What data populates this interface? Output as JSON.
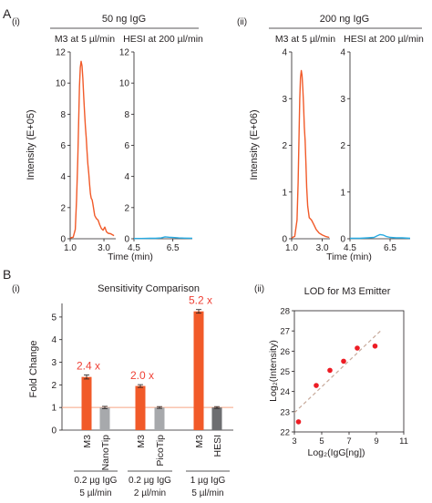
{
  "panel_labels": {
    "A": "A",
    "A_i": "(i)",
    "A_ii": "(ii)",
    "B": "B",
    "B_i": "(i)",
    "B_ii": "(ii)"
  },
  "colors": {
    "orange": "#f15a29",
    "blue": "#29abe2",
    "gray": "#a7a9ac",
    "dark_gray": "#6d6e71",
    "red_text": "#ef4136",
    "red_point": "#ed1c24",
    "axis": "#231f20",
    "ref_line": "#f7a584",
    "fit_line": "#c7a99a"
  },
  "chart_data": [
    {
      "type": "line",
      "group_title": "50 ng IgG",
      "subplot_title": "M3 at 5 µl/min",
      "ylabel": "Intensity (E+05)",
      "xlabel": "Time (min)",
      "xlim": [
        1.0,
        3.7
      ],
      "ylim": [
        0,
        12
      ],
      "xticks": [
        1.0,
        3.0
      ],
      "yticks": [
        0,
        2,
        4,
        6,
        8,
        10,
        12
      ],
      "series": [
        {
          "color": "orange",
          "x": [
            1.0,
            1.18,
            1.3,
            1.38,
            1.45,
            1.5,
            1.55,
            1.6,
            1.65,
            1.7,
            1.75,
            1.8,
            1.85,
            1.9,
            1.95,
            2.0,
            2.05,
            2.1,
            2.15,
            2.2,
            2.25,
            2.3,
            2.35,
            2.45,
            2.55,
            2.65,
            2.75,
            2.85,
            2.95,
            3.05,
            3.15,
            3.25,
            3.4,
            3.6
          ],
          "y": [
            0.05,
            0.1,
            0.6,
            2.5,
            5.0,
            7.5,
            9.8,
            11.0,
            11.4,
            11.1,
            10.3,
            9.2,
            8.2,
            7.2,
            6.5,
            5.6,
            4.8,
            4.2,
            3.5,
            2.9,
            2.6,
            2.5,
            2.2,
            1.5,
            1.3,
            1.2,
            0.9,
            0.65,
            0.55,
            0.75,
            0.45,
            0.35,
            0.32,
            0.2
          ]
        }
      ]
    },
    {
      "type": "line",
      "subplot_title": "HESI at 200 µl/min",
      "xlabel": "Time (min)",
      "xlim": [
        4.5,
        7.5
      ],
      "ylim": [
        0,
        12
      ],
      "xticks": [
        4.5,
        6.5
      ],
      "yticks": [
        0,
        2,
        4,
        6,
        8,
        10,
        12
      ],
      "series": [
        {
          "color": "blue",
          "x": [
            4.5,
            4.9,
            5.3,
            5.6,
            5.9,
            6.1,
            6.3,
            6.5,
            6.8,
            7.1,
            7.5
          ],
          "y": [
            0.02,
            0.02,
            0.03,
            0.03,
            0.05,
            0.12,
            0.1,
            0.08,
            0.05,
            0.04,
            0.03
          ]
        }
      ]
    },
    {
      "type": "line",
      "group_title": "200 ng IgG",
      "subplot_title": "M3 at 5 µl/min",
      "ylabel": "Intensity (E+06)",
      "xlabel": "Time (min)",
      "xlim": [
        1.0,
        3.5
      ],
      "ylim": [
        0,
        4
      ],
      "xticks": [
        1.0,
        3.0
      ],
      "yticks": [
        0,
        1,
        2,
        3,
        4
      ],
      "series": [
        {
          "color": "orange",
          "x": [
            1.0,
            1.2,
            1.35,
            1.42,
            1.48,
            1.53,
            1.58,
            1.63,
            1.68,
            1.73,
            1.78,
            1.83,
            1.88,
            1.93,
            1.98,
            2.05,
            2.15,
            2.3,
            2.45,
            2.6,
            2.8,
            3.0,
            3.2,
            3.45
          ],
          "y": [
            0.02,
            0.05,
            0.4,
            1.2,
            2.2,
            3.0,
            3.45,
            3.6,
            3.5,
            3.2,
            2.85,
            2.4,
            2.1,
            1.65,
            1.1,
            0.7,
            0.45,
            0.4,
            0.3,
            0.2,
            0.12,
            0.08,
            0.05,
            0.03
          ]
        }
      ]
    },
    {
      "type": "line",
      "subplot_title": "HESI at 200 µl/min",
      "xlabel": "Time (min)",
      "xlim": [
        4.5,
        7.5
      ],
      "ylim": [
        0,
        4
      ],
      "xticks": [
        4.5,
        6.5
      ],
      "yticks": [
        0,
        1,
        2,
        3,
        4
      ],
      "series": [
        {
          "color": "blue",
          "x": [
            4.5,
            5.0,
            5.4,
            5.7,
            5.85,
            6.0,
            6.15,
            6.3,
            6.5,
            6.8,
            7.1,
            7.5
          ],
          "y": [
            0.01,
            0.01,
            0.02,
            0.03,
            0.06,
            0.09,
            0.08,
            0.05,
            0.03,
            0.02,
            0.02,
            0.01
          ]
        }
      ]
    },
    {
      "type": "bar",
      "title": "Sensitivity Comparison",
      "ylabel": "Fold Change",
      "ylim": [
        0,
        5.6
      ],
      "yticks": [
        0,
        1,
        2,
        3,
        4,
        5
      ],
      "reference_line": 1.0,
      "categories": [
        "M3",
        "NanoTip",
        "M3",
        "PicoTip",
        "M3",
        "HESI"
      ],
      "values": [
        2.35,
        1.0,
        1.95,
        1.0,
        5.25,
        1.0
      ],
      "errors": [
        0.09,
        0.05,
        0.06,
        0.04,
        0.08,
        0.04
      ],
      "bar_colors": [
        "orange",
        "gray",
        "orange",
        "gray",
        "orange",
        "dark_gray"
      ],
      "annotations": [
        {
          "bar": 0,
          "text": "2.4 x"
        },
        {
          "bar": 2,
          "text": "2.0 x"
        },
        {
          "bar": 4,
          "text": "5.2 x"
        }
      ],
      "groups": [
        {
          "bars": [
            0,
            1
          ],
          "line1": "0.2 µg IgG",
          "line2": "5 µl/min"
        },
        {
          "bars": [
            2,
            3
          ],
          "line1": "0.2 µg IgG",
          "line2": "2 µl/min"
        },
        {
          "bars": [
            4,
            5
          ],
          "line1": "1 µg IgG",
          "line2": "5 µl/min"
        }
      ]
    },
    {
      "type": "scatter",
      "title": "LOD for M3 Emitter",
      "xlabel": "Log₂(IgG[ng])",
      "ylabel": "Log₂(Intensity)",
      "xlim": [
        3,
        11
      ],
      "ylim": [
        22,
        28
      ],
      "xticks": [
        3,
        5,
        7,
        9,
        11
      ],
      "yticks": [
        22,
        23,
        24,
        25,
        26,
        27,
        28
      ],
      "x": [
        3.3,
        4.6,
        5.6,
        6.6,
        7.6,
        8.9
      ],
      "y": [
        22.5,
        24.3,
        25.05,
        25.5,
        26.15,
        26.25
      ],
      "fit_line": {
        "x": [
          3.0,
          9.3
        ],
        "y": [
          22.95,
          27.0
        ]
      }
    }
  ]
}
